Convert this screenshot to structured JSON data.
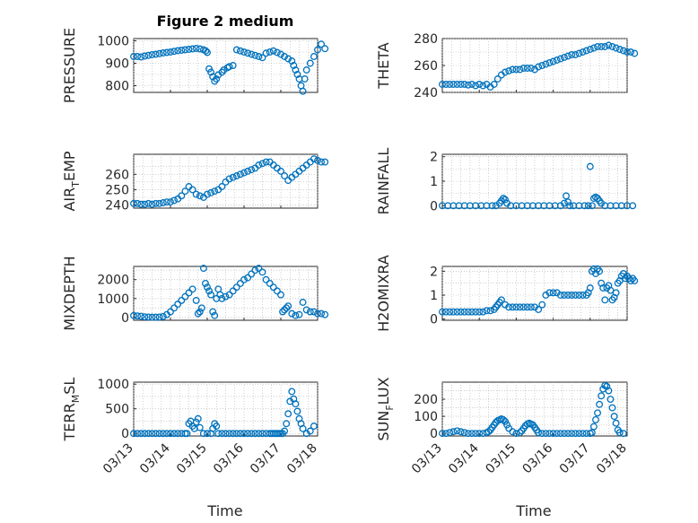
{
  "figure": {
    "title": "Figure 2 medium"
  },
  "x_axis": {
    "label": "Time",
    "tick_labels": [
      "03/13",
      "03/14",
      "03/15",
      "03/16",
      "03/17",
      "03/18"
    ]
  },
  "colors": {
    "marker": "#0072BD",
    "axis": "#262626",
    "grid": "#b0b0b0"
  },
  "chart_data": [
    {
      "type": "scatter",
      "ylabel": "PRESSURE",
      "ylim": [
        770,
        1010
      ],
      "yticks": [
        800,
        900,
        1000
      ],
      "xlim": [
        0,
        5
      ],
      "x": [
        0.0,
        0.1,
        0.2,
        0.3,
        0.4,
        0.5,
        0.6,
        0.7,
        0.8,
        0.9,
        1.0,
        1.1,
        1.2,
        1.3,
        1.4,
        1.5,
        1.6,
        1.7,
        1.8,
        1.9,
        1.96,
        2.0,
        2.05,
        2.1,
        2.15,
        2.2,
        2.25,
        2.3,
        2.4,
        2.45,
        2.55,
        2.6,
        2.7,
        2.8,
        2.9,
        3.0,
        3.1,
        3.2,
        3.3,
        3.4,
        3.5,
        3.6,
        3.7,
        3.8,
        3.9,
        4.0,
        4.1,
        4.2,
        4.3,
        4.35,
        4.4,
        4.45,
        4.5,
        4.55,
        4.6,
        4.65,
        4.7,
        4.8,
        4.9,
        5.0,
        5.1,
        5.2
      ],
      "values": [
        930,
        930,
        928,
        932,
        935,
        938,
        940,
        943,
        946,
        948,
        950,
        953,
        956,
        958,
        960,
        962,
        964,
        966,
        964,
        960,
        955,
        948,
        875,
        860,
        840,
        820,
        830,
        848,
        860,
        870,
        880,
        885,
        890,
        960,
        955,
        950,
        945,
        940,
        935,
        930,
        925,
        945,
        950,
        955,
        948,
        940,
        930,
        920,
        910,
        890,
        870,
        850,
        830,
        800,
        775,
        830,
        870,
        900,
        930,
        960,
        985,
        965
      ]
    },
    {
      "type": "scatter",
      "ylabel": "THETA",
      "ylim": [
        240,
        280
      ],
      "yticks": [
        240,
        260,
        280
      ],
      "xlim": [
        0,
        5
      ],
      "x": [
        0.0,
        0.1,
        0.2,
        0.3,
        0.4,
        0.5,
        0.6,
        0.7,
        0.8,
        0.9,
        1.0,
        1.1,
        1.2,
        1.3,
        1.4,
        1.5,
        1.6,
        1.7,
        1.8,
        1.9,
        2.0,
        2.1,
        2.2,
        2.3,
        2.4,
        2.5,
        2.6,
        2.7,
        2.8,
        2.9,
        3.0,
        3.1,
        3.2,
        3.3,
        3.4,
        3.5,
        3.6,
        3.7,
        3.8,
        3.9,
        4.0,
        4.1,
        4.2,
        4.3,
        4.4,
        4.5,
        4.6,
        4.7,
        4.8,
        4.9,
        5.0,
        5.1,
        5.2
      ],
      "values": [
        246,
        246,
        246,
        246,
        246,
        246,
        246,
        245.5,
        246,
        245,
        246,
        245,
        246,
        244,
        246,
        250,
        253,
        255,
        256,
        257,
        257,
        257,
        258,
        258,
        258,
        257,
        259,
        260,
        261,
        262,
        263,
        264,
        265,
        266,
        267,
        268,
        268,
        269,
        270,
        271,
        272,
        273,
        274,
        274,
        274,
        275,
        274,
        273,
        272,
        271,
        270,
        270,
        269
      ]
    },
    {
      "type": "scatter",
      "ylabel": "AIR_TEMP",
      "ylim": [
        238,
        273
      ],
      "yticks": [
        240,
        250,
        260
      ],
      "xlim": [
        0,
        5
      ],
      "x": [
        0.0,
        0.1,
        0.2,
        0.3,
        0.4,
        0.5,
        0.6,
        0.7,
        0.8,
        0.9,
        1.0,
        1.1,
        1.2,
        1.3,
        1.4,
        1.5,
        1.6,
        1.7,
        1.8,
        1.9,
        2.0,
        2.1,
        2.2,
        2.3,
        2.4,
        2.5,
        2.6,
        2.7,
        2.8,
        2.9,
        3.0,
        3.1,
        3.2,
        3.3,
        3.4,
        3.5,
        3.6,
        3.7,
        3.8,
        3.9,
        4.0,
        4.1,
        4.2,
        4.3,
        4.4,
        4.5,
        4.6,
        4.7,
        4.8,
        4.9,
        5.0,
        5.1,
        5.2
      ],
      "values": [
        241,
        241,
        240.5,
        240.5,
        241,
        240.5,
        241,
        241,
        241.5,
        242,
        242,
        243,
        244,
        246,
        249,
        252,
        250,
        247,
        246,
        245,
        247,
        248,
        249,
        250,
        252,
        255,
        257,
        258,
        259,
        260,
        261,
        262,
        263,
        264,
        266,
        267,
        268,
        268,
        266,
        264,
        262,
        259,
        256,
        258,
        260,
        262,
        264,
        266,
        268,
        270,
        269,
        268,
        268
      ]
    },
    {
      "type": "scatter",
      "ylabel": "RAINFALL",
      "ylim": [
        -0.1,
        2.1
      ],
      "yticks": [
        0,
        1,
        2
      ],
      "xlim": [
        0,
        5
      ],
      "x": [
        0.0,
        0.15,
        0.3,
        0.45,
        0.6,
        0.75,
        0.9,
        1.05,
        1.2,
        1.35,
        1.45,
        1.55,
        1.6,
        1.65,
        1.7,
        1.75,
        1.85,
        2.0,
        2.15,
        2.3,
        2.45,
        2.6,
        2.75,
        2.9,
        3.05,
        3.2,
        3.3,
        3.35,
        3.4,
        3.45,
        3.55,
        3.7,
        3.85,
        3.95,
        4.0,
        4.05,
        4.1,
        4.15,
        4.2,
        4.25,
        4.3,
        4.4,
        4.55,
        4.7,
        4.85,
        5.0,
        5.15
      ],
      "values": [
        0,
        0,
        0,
        0,
        0,
        0,
        0,
        0,
        0,
        0,
        0,
        0.1,
        0.2,
        0.3,
        0.25,
        0.1,
        0,
        0,
        0,
        0,
        0,
        0,
        0,
        0,
        0,
        0,
        0.1,
        0.4,
        0.15,
        0,
        0,
        0,
        0,
        0,
        1.6,
        0,
        0.3,
        0.35,
        0.3,
        0.2,
        0.1,
        0,
        0,
        0,
        0,
        0,
        0
      ]
    },
    {
      "type": "scatter",
      "ylabel": "MIXDEPTH",
      "ylim": [
        -150,
        2700
      ],
      "yticks": [
        0,
        1000,
        2000
      ],
      "xlim": [
        0,
        5
      ],
      "x": [
        0.0,
        0.1,
        0.2,
        0.3,
        0.4,
        0.5,
        0.6,
        0.7,
        0.8,
        0.9,
        1.0,
        1.1,
        1.2,
        1.3,
        1.4,
        1.5,
        1.6,
        1.7,
        1.75,
        1.8,
        1.85,
        1.9,
        1.95,
        2.0,
        2.05,
        2.1,
        2.15,
        2.2,
        2.25,
        2.3,
        2.35,
        2.4,
        2.5,
        2.6,
        2.7,
        2.8,
        2.9,
        3.0,
        3.1,
        3.2,
        3.3,
        3.4,
        3.5,
        3.6,
        3.7,
        3.8,
        3.9,
        4.0,
        4.05,
        4.1,
        4.15,
        4.2,
        4.3,
        4.4,
        4.5,
        4.6,
        4.7,
        4.8,
        4.9,
        5.0,
        5.1,
        5.2
      ],
      "values": [
        100,
        80,
        60,
        30,
        20,
        10,
        10,
        20,
        50,
        150,
        300,
        500,
        700,
        900,
        1100,
        1300,
        1500,
        900,
        200,
        300,
        500,
        2600,
        1800,
        1600,
        1400,
        1200,
        300,
        100,
        1000,
        1500,
        1200,
        1000,
        1100,
        1200,
        1400,
        1600,
        1800,
        2000,
        2100,
        2300,
        2500,
        2600,
        2400,
        2000,
        1800,
        1600,
        1400,
        1200,
        300,
        400,
        500,
        600,
        200,
        100,
        150,
        800,
        400,
        300,
        300,
        200,
        200,
        150
      ]
    },
    {
      "type": "scatter",
      "ylabel": "H2OMIXRA",
      "ylim": [
        -0.05,
        2.2
      ],
      "yticks": [
        0,
        1,
        2
      ],
      "xlim": [
        0,
        5
      ],
      "x": [
        0.0,
        0.1,
        0.2,
        0.3,
        0.4,
        0.5,
        0.6,
        0.7,
        0.8,
        0.9,
        1.0,
        1.1,
        1.2,
        1.3,
        1.4,
        1.45,
        1.5,
        1.55,
        1.6,
        1.7,
        1.8,
        1.9,
        2.0,
        2.1,
        2.2,
        2.3,
        2.4,
        2.5,
        2.6,
        2.7,
        2.8,
        2.9,
        3.0,
        3.1,
        3.2,
        3.3,
        3.4,
        3.5,
        3.6,
        3.7,
        3.8,
        3.9,
        3.95,
        4.0,
        4.05,
        4.1,
        4.15,
        4.2,
        4.25,
        4.3,
        4.35,
        4.4,
        4.45,
        4.5,
        4.55,
        4.6,
        4.65,
        4.7,
        4.75,
        4.8,
        4.85,
        4.9,
        4.95,
        5.0,
        5.05,
        5.1,
        5.15,
        5.2
      ],
      "values": [
        0.3,
        0.3,
        0.3,
        0.3,
        0.3,
        0.3,
        0.3,
        0.3,
        0.3,
        0.3,
        0.3,
        0.3,
        0.35,
        0.35,
        0.4,
        0.5,
        0.6,
        0.7,
        0.8,
        0.6,
        0.5,
        0.5,
        0.5,
        0.5,
        0.5,
        0.5,
        0.5,
        0.5,
        0.4,
        0.6,
        1.0,
        1.1,
        1.1,
        1.1,
        1.0,
        1.0,
        1.0,
        1.0,
        1.0,
        1.0,
        1.0,
        1.0,
        1.1,
        1.3,
        2.0,
        2.1,
        1.9,
        2.1,
        2.0,
        1.5,
        1.3,
        0.8,
        1.3,
        1.4,
        1.2,
        0.8,
        0.9,
        1.1,
        1.5,
        1.6,
        1.8,
        1.9,
        1.7,
        1.8,
        1.7,
        1.6,
        1.7,
        1.6
      ]
    },
    {
      "type": "scatter",
      "ylabel": "TERR_MSL",
      "ylim": [
        -50,
        1040
      ],
      "yticks": [
        0,
        500,
        1000
      ],
      "xlim": [
        0,
        5
      ],
      "x": [
        0.0,
        0.1,
        0.2,
        0.3,
        0.4,
        0.5,
        0.6,
        0.7,
        0.8,
        0.9,
        1.0,
        1.1,
        1.2,
        1.3,
        1.4,
        1.45,
        1.5,
        1.55,
        1.6,
        1.65,
        1.7,
        1.75,
        1.8,
        1.9,
        2.0,
        2.1,
        2.15,
        2.2,
        2.25,
        2.3,
        2.4,
        2.5,
        2.6,
        2.7,
        2.8,
        2.9,
        3.0,
        3.1,
        3.2,
        3.3,
        3.4,
        3.5,
        3.6,
        3.7,
        3.75,
        3.8,
        3.85,
        3.9,
        3.95,
        4.0,
        4.05,
        4.1,
        4.15,
        4.2,
        4.25,
        4.3,
        4.35,
        4.4,
        4.45,
        4.5,
        4.55,
        4.6,
        4.7,
        4.8,
        4.9
      ],
      "values": [
        0,
        0,
        0,
        0,
        0,
        0,
        0,
        0,
        0,
        0,
        0,
        0,
        0,
        0,
        0,
        0,
        200,
        250,
        150,
        100,
        230,
        300,
        120,
        0,
        0,
        0,
        100,
        200,
        150,
        0,
        0,
        0,
        0,
        0,
        0,
        0,
        0,
        0,
        0,
        0,
        0,
        0,
        0,
        0,
        0,
        0,
        0,
        0,
        0,
        0,
        0,
        50,
        200,
        400,
        650,
        850,
        700,
        600,
        450,
        300,
        200,
        100,
        0,
        50,
        150
      ]
    },
    {
      "type": "scatter",
      "ylabel": "SUN_FLUX",
      "ylim": [
        -15,
        300
      ],
      "yticks": [
        0,
        100,
        200
      ],
      "xlim": [
        0,
        5
      ],
      "x": [
        0.0,
        0.1,
        0.2,
        0.3,
        0.4,
        0.5,
        0.6,
        0.7,
        0.8,
        0.9,
        1.0,
        1.1,
        1.2,
        1.25,
        1.3,
        1.35,
        1.4,
        1.45,
        1.5,
        1.55,
        1.6,
        1.65,
        1.7,
        1.75,
        1.8,
        1.9,
        2.0,
        2.1,
        2.15,
        2.2,
        2.25,
        2.3,
        2.35,
        2.4,
        2.45,
        2.5,
        2.55,
        2.6,
        2.7,
        2.8,
        2.9,
        3.0,
        3.1,
        3.2,
        3.3,
        3.4,
        3.5,
        3.6,
        3.7,
        3.8,
        3.9,
        4.0,
        4.05,
        4.1,
        4.15,
        4.2,
        4.25,
        4.3,
        4.35,
        4.4,
        4.45,
        4.5,
        4.55,
        4.6,
        4.65,
        4.7,
        4.75,
        4.8,
        4.9
      ],
      "values": [
        0,
        0,
        5,
        10,
        15,
        10,
        5,
        0,
        0,
        0,
        0,
        0,
        5,
        10,
        20,
        35,
        50,
        65,
        75,
        80,
        85,
        80,
        70,
        50,
        30,
        10,
        0,
        5,
        15,
        30,
        45,
        55,
        60,
        55,
        50,
        35,
        20,
        5,
        0,
        0,
        0,
        0,
        0,
        0,
        0,
        0,
        0,
        0,
        0,
        0,
        0,
        0,
        5,
        40,
        80,
        120,
        170,
        220,
        260,
        280,
        275,
        250,
        200,
        150,
        100,
        60,
        20,
        5,
        0
      ]
    }
  ]
}
